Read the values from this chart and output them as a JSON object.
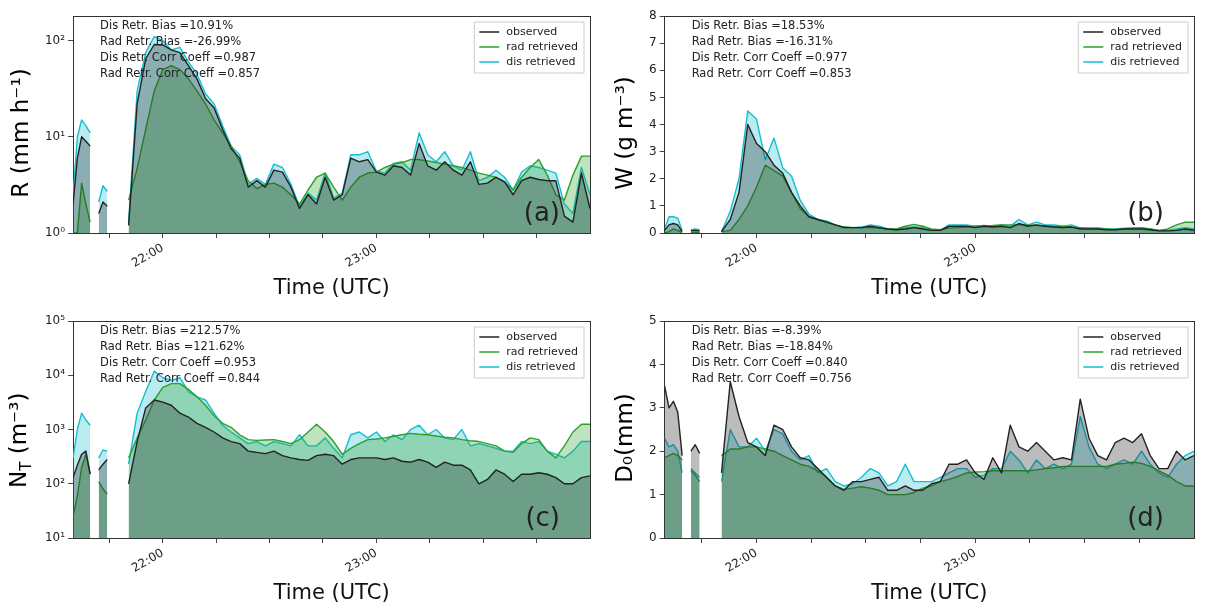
{
  "chart_data": [
    {
      "type": "area",
      "xlabel": "Time (UTC)",
      "ylabel": "R (mm h⁻¹)",
      "log": "y",
      "legend": "top right",
      "annotations": [
        "Dis Retr. Bias =10.91%",
        "Rad Retr. Bias =-26.99%",
        "Dis Retr. Corr Coeff =0.987",
        "Rad Retr. Corr Coeff =0.857",
        "(a)"
      ],
      "xlim": [
        21.58,
        24.0
      ],
      "xticks": [
        {
          "value": 21.75,
          "label": null
        },
        {
          "value": 22,
          "label": "22:00"
        },
        {
          "value": 22.25,
          "label": null
        },
        {
          "value": 22.5,
          "label": null
        },
        {
          "value": 22.75,
          "label": null
        },
        {
          "value": 23,
          "label": "23:00"
        },
        {
          "value": 23.25,
          "label": null
        },
        {
          "value": 23.5,
          "label": null
        },
        {
          "value": 23.75,
          "label": null
        }
      ],
      "ylim": [
        1,
        180
      ],
      "yticks": [
        {
          "value": 1,
          "label": "10⁰"
        },
        {
          "value": 10,
          "label": "10¹"
        },
        {
          "value": 100,
          "label": "10²"
        }
      ],
      "x": [
        21.58,
        21.6,
        21.62,
        21.64,
        21.66,
        21.68,
        21.7,
        21.72,
        21.74,
        21.78,
        21.84,
        21.88,
        21.92,
        21.96,
        22.0,
        22.04,
        22.08,
        22.12,
        22.16,
        22.2,
        22.24,
        22.28,
        22.32,
        22.36,
        22.4,
        22.44,
        22.48,
        22.52,
        22.56,
        22.6,
        22.64,
        22.68,
        22.72,
        22.76,
        22.8,
        22.84,
        22.88,
        22.92,
        22.96,
        23.0,
        23.04,
        23.08,
        23.12,
        23.16,
        23.2,
        23.24,
        23.28,
        23.32,
        23.36,
        23.4,
        23.44,
        23.48,
        23.52,
        23.56,
        23.6,
        23.64,
        23.68,
        23.72,
        23.76,
        23.8,
        23.84,
        23.88,
        23.92,
        23.96,
        24.0
      ],
      "series": [
        {
          "name": "observed",
          "color": "#222222",
          "values": [
            2,
            6,
            10,
            9,
            8,
            null,
            1.6,
            2.1,
            1.9,
            null,
            1.2,
            22,
            65,
            91,
            90,
            80,
            75,
            55,
            40,
            25,
            20,
            12,
            7.5,
            6,
            3,
            3.5,
            3,
            4.5,
            4.3,
            3,
            1.8,
            2.5,
            2,
            3.8,
            2.2,
            2.5,
            6,
            5.5,
            5.8,
            4.3,
            4,
            5,
            4.8,
            4,
            8.5,
            5,
            4.5,
            5.5,
            4.5,
            4,
            5.5,
            3.2,
            3.3,
            3.8,
            3.4,
            2.5,
            3.5,
            3.8,
            3.6,
            3.5,
            3.5,
            1.5,
            1.3,
            4.2,
            1.8
          ]
        },
        {
          "name": "rad retrieved",
          "color": "#2ca02c",
          "values": [
            1,
            1,
            3.3,
            2,
            1.3,
            null,
            null,
            null,
            null,
            null,
            2.2,
            4.7,
            12,
            30,
            50,
            55,
            50,
            40,
            30,
            22,
            15,
            11,
            8,
            5.5,
            3.5,
            2.9,
            3.2,
            3.3,
            3,
            2.5,
            2,
            2.8,
            3.8,
            4.2,
            3,
            2.2,
            3,
            3.8,
            4.2,
            4.3,
            4.8,
            5.2,
            5.4,
            5.8,
            5.8,
            5.6,
            5.4,
            5.2,
            5,
            4.8,
            4.5,
            4.2,
            4,
            3.8,
            3.4,
            2.8,
            3.8,
            4.8,
            5.8,
            4,
            2.5,
            2.2,
            4,
            6.3,
            6.3
          ]
        },
        {
          "name": "dis retrieved",
          "color": "#17becf",
          "values": [
            2.5,
            10,
            15,
            13,
            11,
            null,
            2.1,
            3.1,
            2.7,
            null,
            1.3,
            30,
            75,
            110,
            100,
            80,
            85,
            60,
            45,
            28,
            22,
            13,
            8,
            6.5,
            3.2,
            3.7,
            3.2,
            5.2,
            4.8,
            3.2,
            1.9,
            2.6,
            2.2,
            4.2,
            2.3,
            2.6,
            6.5,
            6.5,
            7,
            4.4,
            4.2,
            5.3,
            5.5,
            4.5,
            11,
            6.5,
            5.5,
            7,
            5,
            4.5,
            7,
            3.5,
            3.8,
            4.5,
            3.8,
            2.8,
            4.3,
            5,
            4.8,
            4.5,
            4.2,
            2,
            1.6,
            4.8,
            2.5
          ]
        }
      ]
    },
    {
      "type": "area",
      "xlabel": "Time (UTC)",
      "ylabel": "W (g m⁻³)",
      "legend": "top right",
      "annotations": [
        "Dis Retr. Bias =18.53%",
        "Rad Retr. Bias =-16.31%",
        "Dis Retr. Corr Coeff =0.977",
        "Rad Retr. Corr Coeff =0.853",
        "(b)"
      ],
      "xlim": [
        21.58,
        24.0
      ],
      "xticks": [
        {
          "value": 21.75,
          "label": null
        },
        {
          "value": 22,
          "label": "22:00"
        },
        {
          "value": 22.25,
          "label": null
        },
        {
          "value": 22.5,
          "label": null
        },
        {
          "value": 22.75,
          "label": null
        },
        {
          "value": 23,
          "label": "23:00"
        },
        {
          "value": 23.25,
          "label": null
        },
        {
          "value": 23.5,
          "label": null
        },
        {
          "value": 23.75,
          "label": null
        }
      ],
      "ylim": [
        0,
        8
      ],
      "yticks": [
        0,
        1,
        2,
        3,
        4,
        5,
        6,
        7,
        8
      ],
      "x": [
        21.58,
        21.6,
        21.62,
        21.64,
        21.66,
        21.68,
        21.7,
        21.72,
        21.74,
        21.78,
        21.84,
        21.88,
        21.92,
        21.96,
        22.0,
        22.04,
        22.08,
        22.12,
        22.16,
        22.2,
        22.24,
        22.28,
        22.32,
        22.36,
        22.4,
        22.44,
        22.48,
        22.52,
        22.56,
        22.6,
        22.64,
        22.68,
        22.72,
        22.76,
        22.8,
        22.84,
        22.88,
        22.92,
        22.96,
        23.0,
        23.04,
        23.08,
        23.12,
        23.16,
        23.2,
        23.24,
        23.28,
        23.32,
        23.36,
        23.4,
        23.44,
        23.48,
        23.52,
        23.56,
        23.6,
        23.64,
        23.68,
        23.72,
        23.76,
        23.8,
        23.84,
        23.88,
        23.92,
        23.96,
        24.0
      ],
      "series": [
        {
          "name": "observed",
          "color": "#222222",
          "values": [
            0.1,
            0.3,
            0.35,
            0.3,
            0.05,
            null,
            0.08,
            0.1,
            0.08,
            null,
            0.05,
            0.5,
            1.5,
            4,
            3.3,
            3,
            2.5,
            2.2,
            1.5,
            1,
            0.6,
            0.5,
            0.4,
            0.3,
            0.2,
            0.2,
            0.2,
            0.25,
            0.2,
            0.15,
            0.12,
            0.15,
            0.2,
            0.15,
            0.1,
            0.1,
            0.25,
            0.25,
            0.25,
            0.2,
            0.25,
            0.22,
            0.25,
            0.2,
            0.35,
            0.25,
            0.3,
            0.25,
            0.22,
            0.2,
            0.22,
            0.15,
            0.15,
            0.15,
            0.12,
            0.12,
            0.15,
            0.15,
            0.15,
            0.12,
            0.08,
            0.08,
            0.1,
            0.15,
            0.1
          ]
        },
        {
          "name": "rad retrieved",
          "color": "#2ca02c",
          "values": [
            0,
            0.05,
            0.15,
            0.1,
            0.02,
            null,
            0.02,
            0.02,
            0.02,
            null,
            0.05,
            0.1,
            0.5,
            1,
            1.7,
            2.5,
            2.3,
            2.1,
            1.5,
            0.9,
            0.6,
            0.5,
            0.4,
            0.3,
            0.22,
            0.2,
            0.2,
            0.2,
            0.18,
            0.15,
            0.15,
            0.25,
            0.32,
            0.25,
            0.15,
            0.12,
            0.18,
            0.2,
            0.22,
            0.25,
            0.27,
            0.28,
            0.3,
            0.3,
            0.3,
            0.3,
            0.28,
            0.27,
            0.25,
            0.25,
            0.22,
            0.2,
            0.18,
            0.16,
            0.15,
            0.13,
            0.15,
            0.17,
            0.2,
            0.15,
            0.1,
            0.15,
            0.3,
            0.4,
            0.4
          ]
        },
        {
          "name": "dis retrieved",
          "color": "#17becf",
          "values": [
            0.15,
            0.6,
            0.6,
            0.55,
            0.1,
            null,
            0.12,
            0.15,
            0.12,
            null,
            0.05,
            0.8,
            2,
            4.5,
            4.2,
            2.7,
            3.5,
            2.4,
            2.1,
            1.2,
            0.7,
            0.5,
            0.45,
            0.3,
            0.22,
            0.2,
            0.22,
            0.3,
            0.25,
            0.15,
            0.12,
            0.2,
            0.22,
            0.2,
            0.1,
            0.1,
            0.3,
            0.3,
            0.3,
            0.25,
            0.28,
            0.25,
            0.3,
            0.25,
            0.5,
            0.3,
            0.4,
            0.3,
            0.3,
            0.25,
            0.3,
            0.18,
            0.18,
            0.2,
            0.15,
            0.15,
            0.18,
            0.2,
            0.18,
            0.15,
            0.1,
            0.1,
            0.15,
            0.2,
            0.15
          ]
        }
      ]
    },
    {
      "type": "area",
      "xlabel": "Time (UTC)",
      "ylabel": "N$_{T}$ (m⁻³)",
      "log": "y",
      "legend": "top right",
      "annotations": [
        "Dis Retr. Bias =212.57%",
        "Rad Retr. Bias =121.62%",
        "Dis Retr. Corr Coeff =0.953",
        "Rad Retr. Corr Coeff =0.844",
        "(c)"
      ],
      "xlim": [
        21.58,
        24.0
      ],
      "xticks": [
        {
          "value": 21.75,
          "label": null
        },
        {
          "value": 22,
          "label": "22:00"
        },
        {
          "value": 22.25,
          "label": null
        },
        {
          "value": 22.5,
          "label": null
        },
        {
          "value": 22.75,
          "label": null
        },
        {
          "value": 23,
          "label": "23:00"
        },
        {
          "value": 23.25,
          "label": null
        },
        {
          "value": 23.5,
          "label": null
        },
        {
          "value": 23.75,
          "label": null
        }
      ],
      "ylim": [
        10,
        100000
      ],
      "yticks": [
        {
          "value": 10,
          "label": "10¹"
        },
        {
          "value": 100,
          "label": "10²"
        },
        {
          "value": 1000,
          "label": "10³"
        },
        {
          "value": 10000,
          "label": "10⁴"
        },
        {
          "value": 100000,
          "label": "10⁵"
        }
      ],
      "x": [
        21.58,
        21.6,
        21.62,
        21.64,
        21.66,
        21.68,
        21.7,
        21.72,
        21.74,
        21.78,
        21.84,
        21.88,
        21.92,
        21.96,
        22.0,
        22.04,
        22.08,
        22.12,
        22.16,
        22.2,
        22.24,
        22.28,
        22.32,
        22.36,
        22.4,
        22.44,
        22.48,
        22.52,
        22.56,
        22.6,
        22.64,
        22.68,
        22.72,
        22.76,
        22.8,
        22.84,
        22.88,
        22.92,
        22.96,
        23.0,
        23.04,
        23.08,
        23.12,
        23.16,
        23.2,
        23.24,
        23.28,
        23.32,
        23.36,
        23.4,
        23.44,
        23.48,
        23.52,
        23.56,
        23.6,
        23.64,
        23.68,
        23.72,
        23.76,
        23.8,
        23.84,
        23.88,
        23.92,
        23.96,
        24.0
      ],
      "series": [
        {
          "name": "observed",
          "color": "#222222",
          "values": [
            130,
            220,
            350,
            400,
            150,
            null,
            180,
            230,
            280,
            null,
            100,
            600,
            2500,
            3500,
            3200,
            2800,
            2000,
            1700,
            1300,
            1100,
            900,
            700,
            600,
            550,
            400,
            380,
            360,
            400,
            330,
            300,
            280,
            270,
            330,
            350,
            330,
            230,
            280,
            300,
            300,
            300,
            280,
            300,
            260,
            250,
            280,
            250,
            200,
            250,
            220,
            220,
            180,
            100,
            120,
            180,
            150,
            110,
            150,
            150,
            160,
            150,
            130,
            100,
            100,
            130,
            140
          ]
        },
        {
          "name": "rad retrieved",
          "color": "#2ca02c",
          "values": [
            25,
            60,
            200,
            350,
            150,
            null,
            110,
            80,
            65,
            null,
            300,
            700,
            1500,
            3500,
            6000,
            7000,
            7000,
            5500,
            4000,
            2800,
            1800,
            1300,
            1100,
            800,
            650,
            630,
            640,
            650,
            600,
            550,
            650,
            900,
            1250,
            900,
            600,
            350,
            450,
            550,
            650,
            670,
            700,
            750,
            800,
            850,
            820,
            800,
            760,
            720,
            700,
            650,
            620,
            600,
            550,
            500,
            400,
            380,
            550,
            700,
            650,
            400,
            300,
            500,
            900,
            1250,
            1250
          ]
        },
        {
          "name": "dis retrieved",
          "color": "#17becf",
          "values": [
            300,
            1000,
            2000,
            1500,
            1200,
            null,
            300,
            420,
            400,
            null,
            230,
            2000,
            5000,
            12000,
            9000,
            8000,
            9000,
            5000,
            4000,
            3500,
            2000,
            1200,
            900,
            700,
            550,
            600,
            500,
            600,
            550,
            500,
            800,
            500,
            500,
            700,
            450,
            300,
            800,
            900,
            700,
            900,
            600,
            800,
            650,
            1000,
            1200,
            800,
            1000,
            700,
            650,
            1000,
            500,
            550,
            500,
            450,
            400,
            400,
            600,
            550,
            600,
            400,
            350,
            300,
            400,
            600,
            600
          ]
        }
      ]
    },
    {
      "type": "area",
      "xlabel": "Time (UTC)",
      "ylabel": "D₀(mm)",
      "legend": "top right",
      "annotations": [
        "Dis Retr. Bias =-8.39%",
        "Rad Retr. Bias =-18.84%",
        "Dis Retr. Corr Coeff =0.840",
        "Rad Retr. Corr Coeff =0.756",
        "(d)"
      ],
      "xlim": [
        21.58,
        24.0
      ],
      "xticks": [
        {
          "value": 21.75,
          "label": null
        },
        {
          "value": 22,
          "label": "22:00"
        },
        {
          "value": 22.25,
          "label": null
        },
        {
          "value": 22.5,
          "label": null
        },
        {
          "value": 22.75,
          "label": null
        },
        {
          "value": 23,
          "label": "23:00"
        },
        {
          "value": 23.25,
          "label": null
        },
        {
          "value": 23.5,
          "label": null
        },
        {
          "value": 23.75,
          "label": null
        }
      ],
      "ylim": [
        0,
        5
      ],
      "yticks": [
        0,
        1,
        2,
        3,
        4,
        5
      ],
      "x": [
        21.58,
        21.6,
        21.62,
        21.64,
        21.66,
        21.68,
        21.7,
        21.72,
        21.74,
        21.78,
        21.84,
        21.88,
        21.92,
        21.96,
        22.0,
        22.04,
        22.08,
        22.12,
        22.16,
        22.2,
        22.24,
        22.28,
        22.32,
        22.36,
        22.4,
        22.44,
        22.48,
        22.52,
        22.56,
        22.6,
        22.64,
        22.68,
        22.72,
        22.76,
        22.8,
        22.84,
        22.88,
        22.92,
        22.96,
        23.0,
        23.04,
        23.08,
        23.12,
        23.16,
        23.2,
        23.24,
        23.28,
        23.32,
        23.36,
        23.4,
        23.44,
        23.48,
        23.52,
        23.56,
        23.6,
        23.64,
        23.68,
        23.72,
        23.76,
        23.8,
        23.84,
        23.88,
        23.92,
        23.96,
        24.0
      ],
      "series": [
        {
          "name": "observed",
          "color": "#222222",
          "values": [
            3.5,
            3,
            3.15,
            2.9,
            1.9,
            null,
            2,
            2.15,
            1.95,
            null,
            1.5,
            3.6,
            2.8,
            2.2,
            2.1,
            1.9,
            2.6,
            2.5,
            2.1,
            1.85,
            1.8,
            1.6,
            1.4,
            1.2,
            1.1,
            1.3,
            1.3,
            1.35,
            1.4,
            1.1,
            1.1,
            1.2,
            1.1,
            1.1,
            1.25,
            1.3,
            1.7,
            1.7,
            1.8,
            1.5,
            1.35,
            1.85,
            1.5,
            2.6,
            2.1,
            2,
            2.2,
            2,
            1.8,
            1.85,
            1.8,
            3.2,
            2.3,
            1.9,
            1.8,
            2.2,
            2.3,
            2.2,
            2.4,
            1.9,
            1.6,
            1.6,
            2,
            1.8,
            1.9
          ]
        },
        {
          "name": "rad retrieved",
          "color": "#2ca02c",
          "values": [
            1.85,
            1.9,
            1.95,
            1.9,
            1.8,
            null,
            1.55,
            1.45,
            1.3,
            null,
            1.9,
            2.05,
            2.05,
            2.1,
            2.1,
            2.05,
            2,
            1.9,
            1.8,
            1.7,
            1.65,
            1.55,
            1.4,
            1.2,
            1.12,
            1.15,
            1.18,
            1.15,
            1.1,
            1,
            1,
            1,
            1.05,
            1.15,
            1.2,
            1.3,
            1.35,
            1.42,
            1.5,
            1.52,
            1.53,
            1.55,
            1.55,
            1.55,
            1.55,
            1.55,
            1.57,
            1.6,
            1.62,
            1.65,
            1.65,
            1.65,
            1.65,
            1.65,
            1.65,
            1.7,
            1.72,
            1.75,
            1.72,
            1.65,
            1.55,
            1.45,
            1.3,
            1.2,
            1.2
          ]
        },
        {
          "name": "dis retrieved",
          "color": "#17becf",
          "values": [
            2.3,
            2.1,
            2.15,
            2,
            1.5,
            null,
            1.6,
            1.5,
            1.4,
            null,
            1.3,
            2.5,
            2.1,
            2.1,
            2.3,
            2,
            2.5,
            2.4,
            2,
            1.8,
            1.9,
            1.5,
            1.6,
            1.3,
            1.2,
            1.25,
            1.4,
            1.6,
            1.5,
            1.2,
            1.3,
            1.7,
            1.3,
            1.3,
            1.3,
            1.4,
            1.5,
            1.6,
            1.6,
            1.4,
            1.45,
            1.6,
            1.6,
            2,
            1.8,
            1.5,
            1.8,
            1.6,
            1.7,
            1.6,
            1.7,
            2.8,
            2.1,
            1.7,
            1.6,
            1.7,
            1.8,
            1.7,
            2,
            1.7,
            1.5,
            1.4,
            1.7,
            1.9,
            2
          ]
        }
      ]
    }
  ]
}
